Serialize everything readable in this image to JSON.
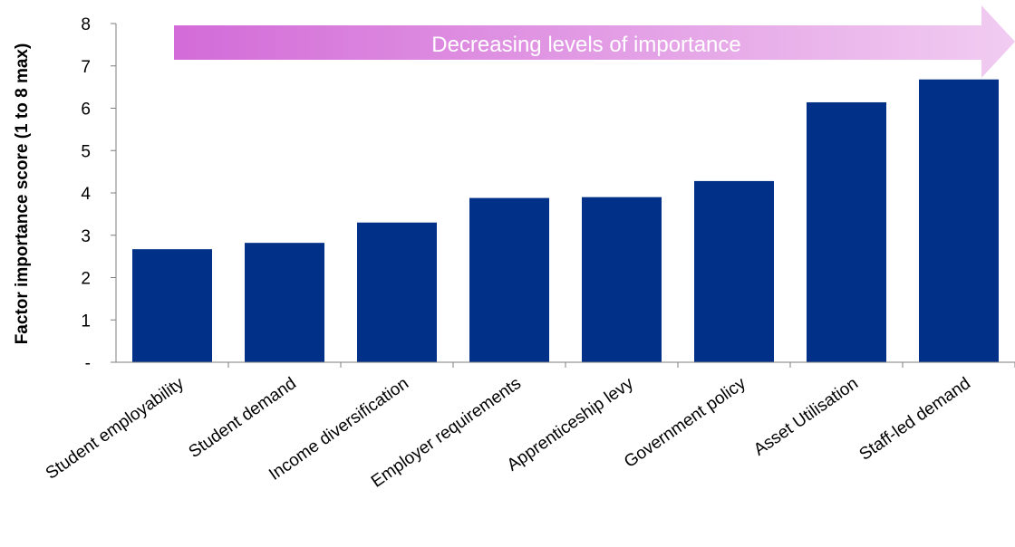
{
  "chart_data": {
    "type": "bar",
    "ylabel": "Factor importance score (1 to 8 max)",
    "xlabel": "",
    "ylim": [
      0,
      8
    ],
    "y_ticks": [
      {
        "value": 0,
        "label": "-"
      },
      {
        "value": 1,
        "label": "1"
      },
      {
        "value": 2,
        "label": "2"
      },
      {
        "value": 3,
        "label": "3"
      },
      {
        "value": 4,
        "label": "4"
      },
      {
        "value": 5,
        "label": "5"
      },
      {
        "value": 6,
        "label": "6"
      },
      {
        "value": 7,
        "label": "7"
      },
      {
        "value": 8,
        "label": "8"
      }
    ],
    "categories": [
      "Student employability",
      "Student demand",
      "Income diversification",
      "Employer requirements",
      "Apprenticeship levy",
      "Government policy",
      "Asset Utilisation",
      "Staff-led demand"
    ],
    "values": [
      2.67,
      2.82,
      3.3,
      3.88,
      3.9,
      4.28,
      6.14,
      6.68
    ],
    "bar_color": "#003087",
    "grid": false,
    "annotation": {
      "text": "Decreasing levels of importance",
      "shape": "arrow",
      "direction": "right",
      "gradient_colors": [
        "#d36bd8",
        "#f1ccf1"
      ],
      "text_color": "#ffffff"
    }
  }
}
